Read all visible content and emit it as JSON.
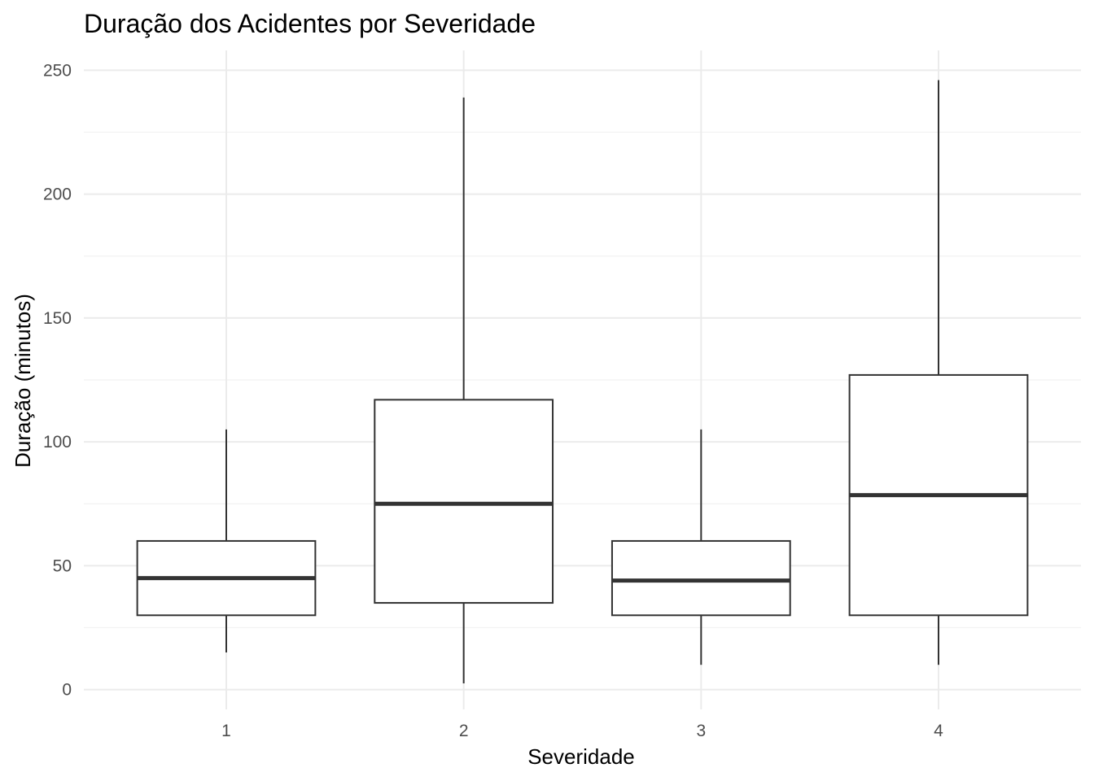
{
  "chart_data": {
    "type": "box",
    "title": "Duração dos Acidentes por Severidade",
    "xlabel": "Severidade",
    "ylabel": "Duração (minutos)",
    "ylim": [
      -8,
      258
    ],
    "y_ticks": [
      0,
      50,
      100,
      150,
      200,
      250
    ],
    "y_minor_ticks": [
      25,
      75,
      125,
      175,
      225
    ],
    "grid": true,
    "categories": [
      "1",
      "2",
      "3",
      "4"
    ],
    "boxes": [
      {
        "category": "1",
        "lower_whisker": 15,
        "q1": 30,
        "median": 45,
        "q3": 60,
        "upper_whisker": 105
      },
      {
        "category": "2",
        "lower_whisker": 2.5,
        "q1": 35,
        "median": 75,
        "q3": 117,
        "upper_whisker": 239
      },
      {
        "category": "3",
        "lower_whisker": 10,
        "q1": 30,
        "median": 44,
        "q3": 60,
        "upper_whisker": 105
      },
      {
        "category": "4",
        "lower_whisker": 10,
        "q1": 30,
        "median": 78.5,
        "q3": 127,
        "upper_whisker": 246
      }
    ],
    "colors": {
      "box_fill": "#ffffff",
      "box_stroke": "#333333",
      "grid": "#ebebeb"
    }
  }
}
